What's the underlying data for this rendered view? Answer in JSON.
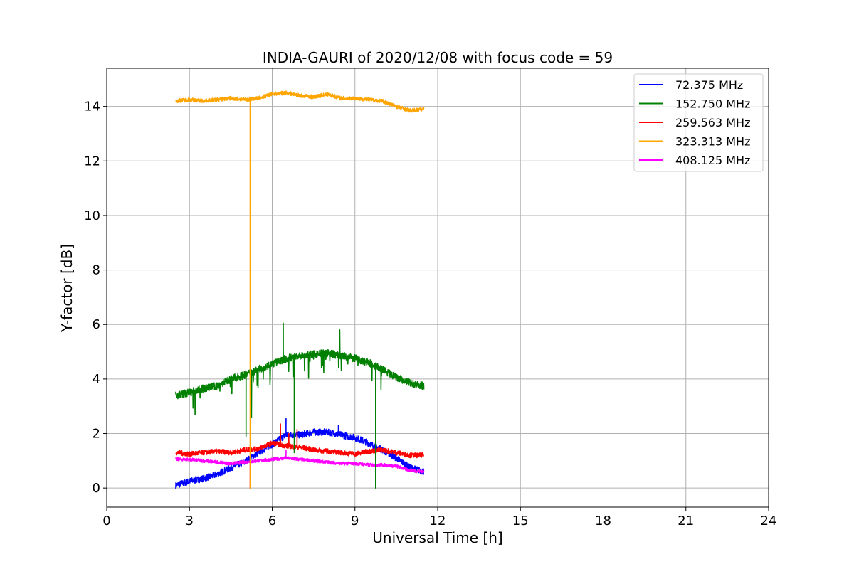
{
  "chart_data": {
    "type": "line",
    "title": "INDIA-GAURI of 2020/12/08 with focus code = 59",
    "xlabel": "Universal Time [h]",
    "ylabel": "Y-factor [dB]",
    "xlim": [
      0,
      24
    ],
    "ylim": [
      -0.7,
      15.4
    ],
    "xticks": [
      0,
      3,
      6,
      9,
      12,
      15,
      18,
      21,
      24
    ],
    "yticks": [
      0,
      2,
      4,
      6,
      8,
      10,
      12,
      14
    ],
    "grid": true,
    "legend_position": "top-right",
    "series": [
      {
        "name": " 72.375 MHz",
        "color": "#0000ff",
        "x": [
          2.5,
          3.0,
          3.5,
          4.0,
          4.5,
          5.0,
          5.5,
          6.0,
          6.5,
          7.0,
          7.5,
          8.0,
          8.5,
          9.0,
          9.5,
          10.0,
          10.5,
          11.0,
          11.5
        ],
        "values": [
          0.1,
          0.25,
          0.35,
          0.5,
          0.75,
          0.95,
          1.3,
          1.6,
          1.95,
          1.95,
          2.05,
          2.05,
          1.95,
          1.85,
          1.65,
          1.4,
          1.1,
          0.75,
          0.6
        ],
        "spikes": [
          {
            "x": 6.5,
            "y": 2.55
          },
          {
            "x": 8.4,
            "y": 2.3
          }
        ]
      },
      {
        "name": "152.750 MHz",
        "color": "#008000",
        "x": [
          2.5,
          3.0,
          3.5,
          4.0,
          4.5,
          5.0,
          5.5,
          6.0,
          6.5,
          7.0,
          7.5,
          8.0,
          8.5,
          9.0,
          9.5,
          10.0,
          10.5,
          11.0,
          11.5
        ],
        "values": [
          3.4,
          3.5,
          3.65,
          3.75,
          4.0,
          4.15,
          4.35,
          4.55,
          4.75,
          4.85,
          4.9,
          4.95,
          4.85,
          4.75,
          4.6,
          4.35,
          4.05,
          3.85,
          3.75
        ],
        "spikes": [
          {
            "x": 5.05,
            "y": 1.9
          },
          {
            "x": 5.25,
            "y": 2.6
          },
          {
            "x": 6.4,
            "y": 6.05
          },
          {
            "x": 6.8,
            "y": 1.3
          },
          {
            "x": 8.45,
            "y": 5.8
          },
          {
            "x": 9.75,
            "y": 0.0
          }
        ]
      },
      {
        "name": "259.563 MHz",
        "color": "#ff0000",
        "x": [
          2.5,
          3.0,
          3.5,
          4.0,
          4.5,
          5.0,
          5.5,
          6.0,
          6.5,
          7.0,
          7.5,
          8.0,
          8.5,
          9.0,
          9.5,
          10.0,
          10.5,
          11.0,
          11.5
        ],
        "values": [
          1.3,
          1.25,
          1.3,
          1.35,
          1.3,
          1.4,
          1.45,
          1.65,
          1.55,
          1.5,
          1.4,
          1.35,
          1.3,
          1.25,
          1.35,
          1.4,
          1.3,
          1.2,
          1.2
        ],
        "spikes": [
          {
            "x": 6.3,
            "y": 2.35
          },
          {
            "x": 6.6,
            "y": 2.0
          },
          {
            "x": 6.9,
            "y": 2.15
          }
        ]
      },
      {
        "name": "323.313 MHz",
        "color": "#ffa500",
        "x": [
          2.5,
          3.0,
          3.5,
          4.0,
          4.5,
          5.0,
          5.5,
          6.0,
          6.5,
          7.0,
          7.5,
          8.0,
          8.5,
          9.0,
          9.5,
          10.0,
          10.5,
          11.0,
          11.5
        ],
        "values": [
          14.2,
          14.25,
          14.2,
          14.25,
          14.3,
          14.25,
          14.3,
          14.45,
          14.5,
          14.4,
          14.35,
          14.45,
          14.3,
          14.3,
          14.25,
          14.2,
          14.0,
          13.85,
          13.9
        ],
        "spikes": [
          {
            "x": 5.2,
            "y": 0.0
          }
        ]
      },
      {
        "name": "408.125 MHz",
        "color": "#ff00ff",
        "x": [
          2.5,
          3.0,
          3.5,
          4.0,
          4.5,
          5.0,
          5.5,
          6.0,
          6.5,
          7.0,
          7.5,
          8.0,
          8.5,
          9.0,
          9.5,
          10.0,
          10.5,
          11.0,
          11.5
        ],
        "values": [
          1.05,
          1.05,
          1.0,
          0.95,
          0.9,
          0.95,
          1.0,
          1.05,
          1.1,
          1.05,
          1.0,
          0.95,
          0.9,
          0.9,
          0.85,
          0.85,
          0.8,
          0.65,
          0.6
        ],
        "spikes": [
          {
            "x": 5.2,
            "y": 0.0
          },
          {
            "x": 6.5,
            "y": 1.4
          }
        ]
      }
    ]
  }
}
